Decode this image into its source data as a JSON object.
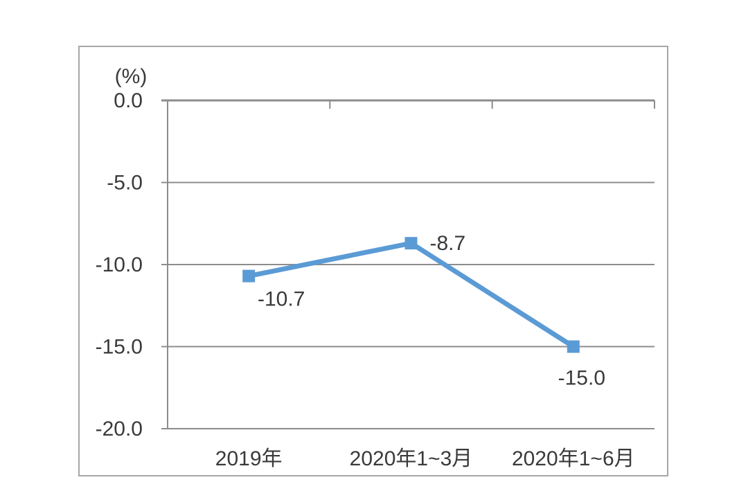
{
  "page": {
    "background": "#ffffff"
  },
  "chart_data": {
    "type": "line",
    "title": "",
    "unit_label": "(%)",
    "categories": [
      "2019年",
      "2020年1~3月",
      "2020年1~6月"
    ],
    "values": [
      -10.7,
      -8.7,
      -15.0
    ],
    "data_labels": [
      "-10.7",
      "-8.7",
      "-15.0"
    ],
    "y_ticks": [
      0,
      -5,
      -10,
      -15,
      -20
    ],
    "y_tick_labels": [
      "0.0",
      "-5.0",
      "-10.0",
      "-15.0",
      "-20.0"
    ],
    "ylim": [
      -20,
      0
    ],
    "grid": true,
    "legend": "none",
    "series_name": "",
    "colors": {
      "line": "#5B9BD5",
      "marker": "#5B9BD5",
      "gridline": "#8c8c8c",
      "axis_line": "#8c8c8c",
      "text": "#3a3a3a",
      "frame_border": "#a6a6a6",
      "background": "#ffffff"
    }
  }
}
